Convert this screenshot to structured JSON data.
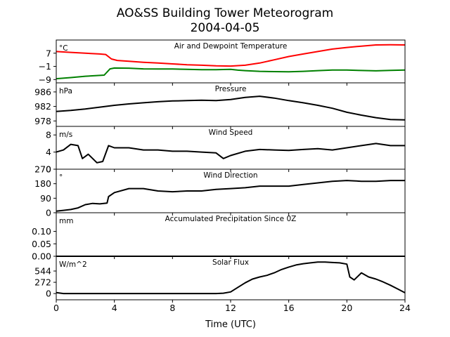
{
  "title_line1": "AO&SS Building Tower Meteorogram",
  "title_line2": "2004-04-05",
  "chart_data": {
    "type": "line",
    "xlabel": "Time (UTC)",
    "x_ticks": [
      0,
      4,
      8,
      12,
      16,
      20,
      24
    ],
    "xlim": [
      0,
      24
    ],
    "panels": [
      {
        "id": "temp",
        "title": "Air and Dewpoint Temperature",
        "unit": "°C",
        "ylim": [
          -11,
          15
        ],
        "y_ticks": [
          {
            "v": 7,
            "label": "7"
          },
          {
            "v": -1,
            "label": "−1"
          },
          {
            "v": -9,
            "label": "−9"
          }
        ],
        "series": [
          {
            "color": "#ff0000",
            "x": [
              0,
              1,
              2,
              3,
              3.4,
              3.8,
              4.2,
              5,
              6,
              7,
              8,
              9,
              10,
              11,
              12,
              13,
              14,
              15,
              16,
              17,
              18,
              19,
              20,
              21,
              22,
              23,
              24
            ],
            "y": [
              8,
              7.5,
              7,
              6.5,
              6.2,
              3.5,
              2.6,
              2.1,
              1.5,
              1,
              0.5,
              0,
              -0.3,
              -0.7,
              -0.8,
              -0.3,
              1,
              3,
              5,
              6.5,
              8,
              9.5,
              10.5,
              11.3,
              12,
              12.1,
              12
            ]
          },
          {
            "color": "#008000",
            "x": [
              0,
              1,
              2,
              3,
              3.3,
              3.7,
              4,
              5,
              6,
              7,
              8,
              9,
              10,
              11,
              12,
              12.5,
              13,
              14,
              15,
              16,
              17,
              18,
              19,
              20,
              21,
              22,
              23,
              24
            ],
            "y": [
              -8.5,
              -7.8,
              -7,
              -6.5,
              -6.3,
              -2.5,
              -2,
              -2.1,
              -2.5,
              -2.6,
              -2.6,
              -2.8,
              -3,
              -3,
              -2.8,
              -3.3,
              -3.6,
              -4,
              -4.2,
              -4.3,
              -4,
              -3.6,
              -3.2,
              -3.2,
              -3.5,
              -3.7,
              -3.4,
              -3.2
            ]
          }
        ]
      },
      {
        "id": "pressure",
        "title": "Pressure",
        "unit": "hPa",
        "ylim": [
          976.5,
          988.5
        ],
        "y_ticks": [
          {
            "v": 986,
            "label": "986"
          },
          {
            "v": 982,
            "label": "982"
          },
          {
            "v": 978,
            "label": "978"
          }
        ],
        "series": [
          {
            "color": "#000000",
            "x": [
              0,
              1,
              2,
              3,
              4,
              5,
              6,
              7,
              8,
              9,
              10,
              11,
              12,
              13,
              14,
              15,
              16,
              17,
              18,
              19,
              20,
              21,
              22,
              23,
              24
            ],
            "y": [
              980.6,
              980.9,
              981.3,
              981.8,
              982.3,
              982.7,
              983,
              983.3,
              983.5,
              983.6,
              983.7,
              983.6,
              983.9,
              984.5,
              984.8,
              984.3,
              983.6,
              983,
              982.3,
              981.5,
              980.4,
              979.6,
              978.9,
              978.4,
              978.3
            ]
          }
        ]
      },
      {
        "id": "wind_speed",
        "title": "Wind Speed",
        "unit": "m/s",
        "ylim": [
          0,
          10
        ],
        "y_ticks": [
          {
            "v": 8,
            "label": "8"
          },
          {
            "v": 4,
            "label": "4"
          },
          {
            "v": 0,
            "label": "0"
          }
        ],
        "series": [
          {
            "color": "#000000",
            "x": [
              0,
              0.5,
              1,
              1.5,
              1.8,
              2.2,
              2.8,
              3.2,
              3.6,
              4,
              5,
              6,
              7,
              8,
              9,
              10,
              11,
              11.5,
              12,
              13,
              14,
              15,
              16,
              17,
              18,
              19,
              20,
              21,
              22,
              23,
              24
            ],
            "y": [
              4,
              4.5,
              5.8,
              5.5,
              2.5,
              3.5,
              1.5,
              1.8,
              5.5,
              5,
              5,
              4.5,
              4.5,
              4.2,
              4.2,
              4,
              3.8,
              2.5,
              3.2,
              4.2,
              4.6,
              4.5,
              4.4,
              4.6,
              4.8,
              4.5,
              5,
              5.5,
              6,
              5.5,
              5.5
            ]
          }
        ]
      },
      {
        "id": "wind_dir",
        "title": "Wind Direction",
        "unit": "°",
        "ylim": [
          0,
          270
        ],
        "y_ticks": [
          {
            "v": 270,
            "label": "270"
          },
          {
            "v": 180,
            "label": "180"
          },
          {
            "v": 90,
            "label": "90"
          },
          {
            "v": 0,
            "label": "0"
          }
        ],
        "series": [
          {
            "color": "#000000",
            "x": [
              0,
              0.5,
              1,
              1.5,
              2,
              2.5,
              3,
              3.5,
              3.6,
              4,
              5,
              6,
              7,
              8,
              9,
              10,
              11,
              12,
              13,
              14,
              15,
              16,
              17,
              18,
              19,
              20,
              21,
              22,
              23,
              24
            ],
            "y": [
              10,
              15,
              20,
              30,
              50,
              58,
              55,
              60,
              100,
              125,
              150,
              150,
              135,
              130,
              135,
              135,
              145,
              150,
              155,
              165,
              165,
              165,
              175,
              185,
              195,
              200,
              195,
              195,
              200,
              200
            ]
          }
        ]
      },
      {
        "id": "precip",
        "title": "Accumulated Precipitation Since 0Z",
        "unit": "mm",
        "ylim": [
          0,
          0.175
        ],
        "y_ticks": [
          {
            "v": 0.1,
            "label": "0.10"
          },
          {
            "v": 0.05,
            "label": "0.05"
          },
          {
            "v": 0.0,
            "label": "0.00"
          }
        ],
        "series": [
          {
            "color": "#000000",
            "x": [
              0,
              24
            ],
            "y": [
              0,
              0
            ]
          }
        ]
      },
      {
        "id": "solar",
        "title": "Solar Flux",
        "unit": "W/m^2",
        "ylim": [
          -150,
          900
        ],
        "y_ticks": [
          {
            "v": 544,
            "label": "544"
          },
          {
            "v": 272,
            "label": "272"
          },
          {
            "v": 0,
            "label": "0"
          }
        ],
        "series": [
          {
            "color": "#000000",
            "x": [
              0,
              0.5,
              1,
              2,
              4,
              6,
              8,
              10,
              11,
              11.5,
              12,
              12.5,
              13,
              13.5,
              14,
              14.5,
              15,
              15.5,
              16,
              16.5,
              17,
              17.5,
              18,
              18.5,
              19,
              19.5,
              20,
              20.2,
              20.5,
              21,
              21.5,
              22,
              22.5,
              23,
              23.5,
              24
            ],
            "y": [
              25,
              0,
              0,
              0,
              0,
              0,
              0,
              0,
              0,
              10,
              40,
              150,
              260,
              350,
              400,
              440,
              500,
              580,
              640,
              690,
              720,
              740,
              760,
              760,
              750,
              740,
              710,
              400,
              330,
              500,
              400,
              350,
              280,
              200,
              110,
              20
            ]
          }
        ]
      }
    ]
  }
}
